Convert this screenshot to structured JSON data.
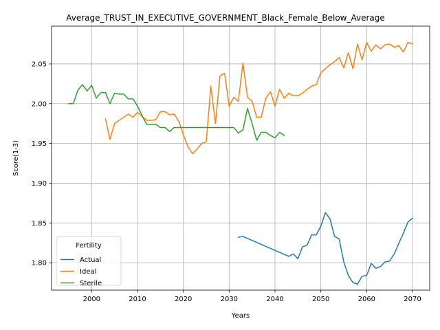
{
  "chart_data": {
    "type": "line",
    "title": "Average_TRUST_IN_EXECUTIVE_GOVERNMENT_Black_Female_Below_Average",
    "xlabel": "Years",
    "ylabel": "Score(1-3)",
    "xlim": [
      1991.25,
      2073.75
    ],
    "ylim": [
      1.7655,
      2.0975
    ],
    "xticks": [
      2000,
      2010,
      2020,
      2030,
      2040,
      2050,
      2060,
      2070
    ],
    "yticks": [
      1.8,
      1.85,
      1.9,
      1.95,
      2.0,
      2.05
    ],
    "grid": true,
    "legend": {
      "title": "Fertility",
      "position": "lower-left"
    },
    "series": [
      {
        "name": "Actual",
        "color": "#1f77b4",
        "x": [
          2032,
          2033,
          2043,
          2044,
          2045,
          2046,
          2047,
          2048,
          2049,
          2050,
          2051,
          2052,
          2053,
          2054,
          2055,
          2056,
          2057,
          2058,
          2059,
          2060,
          2061,
          2062,
          2063,
          2064,
          2065,
          2066,
          2067,
          2068,
          2069,
          2070
        ],
        "y": [
          1.832,
          1.833,
          1.808,
          1.811,
          1.805,
          1.82,
          1.822,
          1.835,
          1.835,
          1.846,
          1.863,
          1.855,
          1.833,
          1.83,
          1.801,
          1.784,
          1.775,
          1.773,
          1.783,
          1.784,
          1.799,
          1.793,
          1.795,
          1.801,
          1.802,
          1.811,
          1.824,
          1.837,
          1.851,
          1.856
        ]
      },
      {
        "name": "Ideal",
        "color": "#ff7f0e",
        "x": [
          2003,
          2004,
          2005,
          2006,
          2007,
          2008,
          2009,
          2010,
          2011,
          2012,
          2013,
          2014,
          2015,
          2016,
          2017,
          2018,
          2019,
          2020,
          2021,
          2022,
          2023,
          2024,
          2025,
          2026,
          2027,
          2028,
          2029,
          2030,
          2031,
          2032,
          2033,
          2034,
          2035,
          2036,
          2037,
          2038,
          2039,
          2040,
          2041,
          2042,
          2043,
          2044,
          2045,
          2046,
          2047,
          2048,
          2049,
          2050,
          2051,
          2052,
          2053,
          2054,
          2055,
          2056,
          2057,
          2058,
          2059,
          2060,
          2061,
          2062,
          2063,
          2064,
          2065,
          2066,
          2067,
          2068,
          2069,
          2070
        ],
        "y": [
          1.981,
          1.955,
          1.975,
          1.979,
          1.983,
          1.987,
          1.983,
          1.989,
          1.984,
          1.979,
          1.979,
          1.98,
          1.99,
          1.99,
          1.986,
          1.987,
          1.978,
          1.961,
          1.946,
          1.937,
          1.943,
          1.95,
          1.952,
          2.022,
          1.975,
          2.035,
          2.038,
          1.997,
          2.008,
          2.003,
          2.051,
          2.008,
          2.003,
          1.983,
          1.983,
          2.007,
          2.015,
          1.997,
          2.018,
          2.007,
          2.013,
          2.01,
          2.01,
          2.013,
          2.018,
          2.022,
          2.024,
          2.039,
          2.044,
          2.049,
          2.053,
          2.058,
          2.045,
          2.064,
          2.044,
          2.075,
          2.055,
          2.077,
          2.066,
          2.074,
          2.069,
          2.074,
          2.075,
          2.071,
          2.073,
          2.065,
          2.077,
          2.075
        ]
      },
      {
        "name": "Sterile",
        "color": "#2ca02c",
        "x": [
          1995,
          1996,
          1997,
          1998,
          1999,
          2000,
          2001,
          2002,
          2003,
          2004,
          2005,
          2006,
          2007,
          2008,
          2009,
          2010,
          2011,
          2012,
          2013,
          2014,
          2015,
          2016,
          2017,
          2018,
          2019,
          2020,
          2021,
          2022,
          2023,
          2024,
          2025,
          2026,
          2027,
          2028,
          2029,
          2030,
          2031,
          2032,
          2033,
          2034,
          2035,
          2036,
          2037,
          2038,
          2039,
          2040,
          2041,
          2042
        ],
        "y": [
          2.0,
          2.0,
          2.017,
          2.024,
          2.016,
          2.023,
          2.007,
          2.014,
          2.014,
          2.0,
          2.013,
          2.012,
          2.012,
          2.006,
          2.006,
          1.997,
          1.985,
          1.974,
          1.974,
          1.974,
          1.97,
          1.97,
          1.965,
          1.97,
          1.97,
          1.97,
          1.97,
          1.97,
          1.97,
          1.97,
          1.97,
          1.97,
          1.97,
          1.97,
          1.97,
          1.97,
          1.97,
          1.963,
          1.967,
          1.994,
          1.975,
          1.954,
          1.964,
          1.964,
          1.96,
          1.957,
          1.964,
          1.96
        ]
      }
    ]
  }
}
